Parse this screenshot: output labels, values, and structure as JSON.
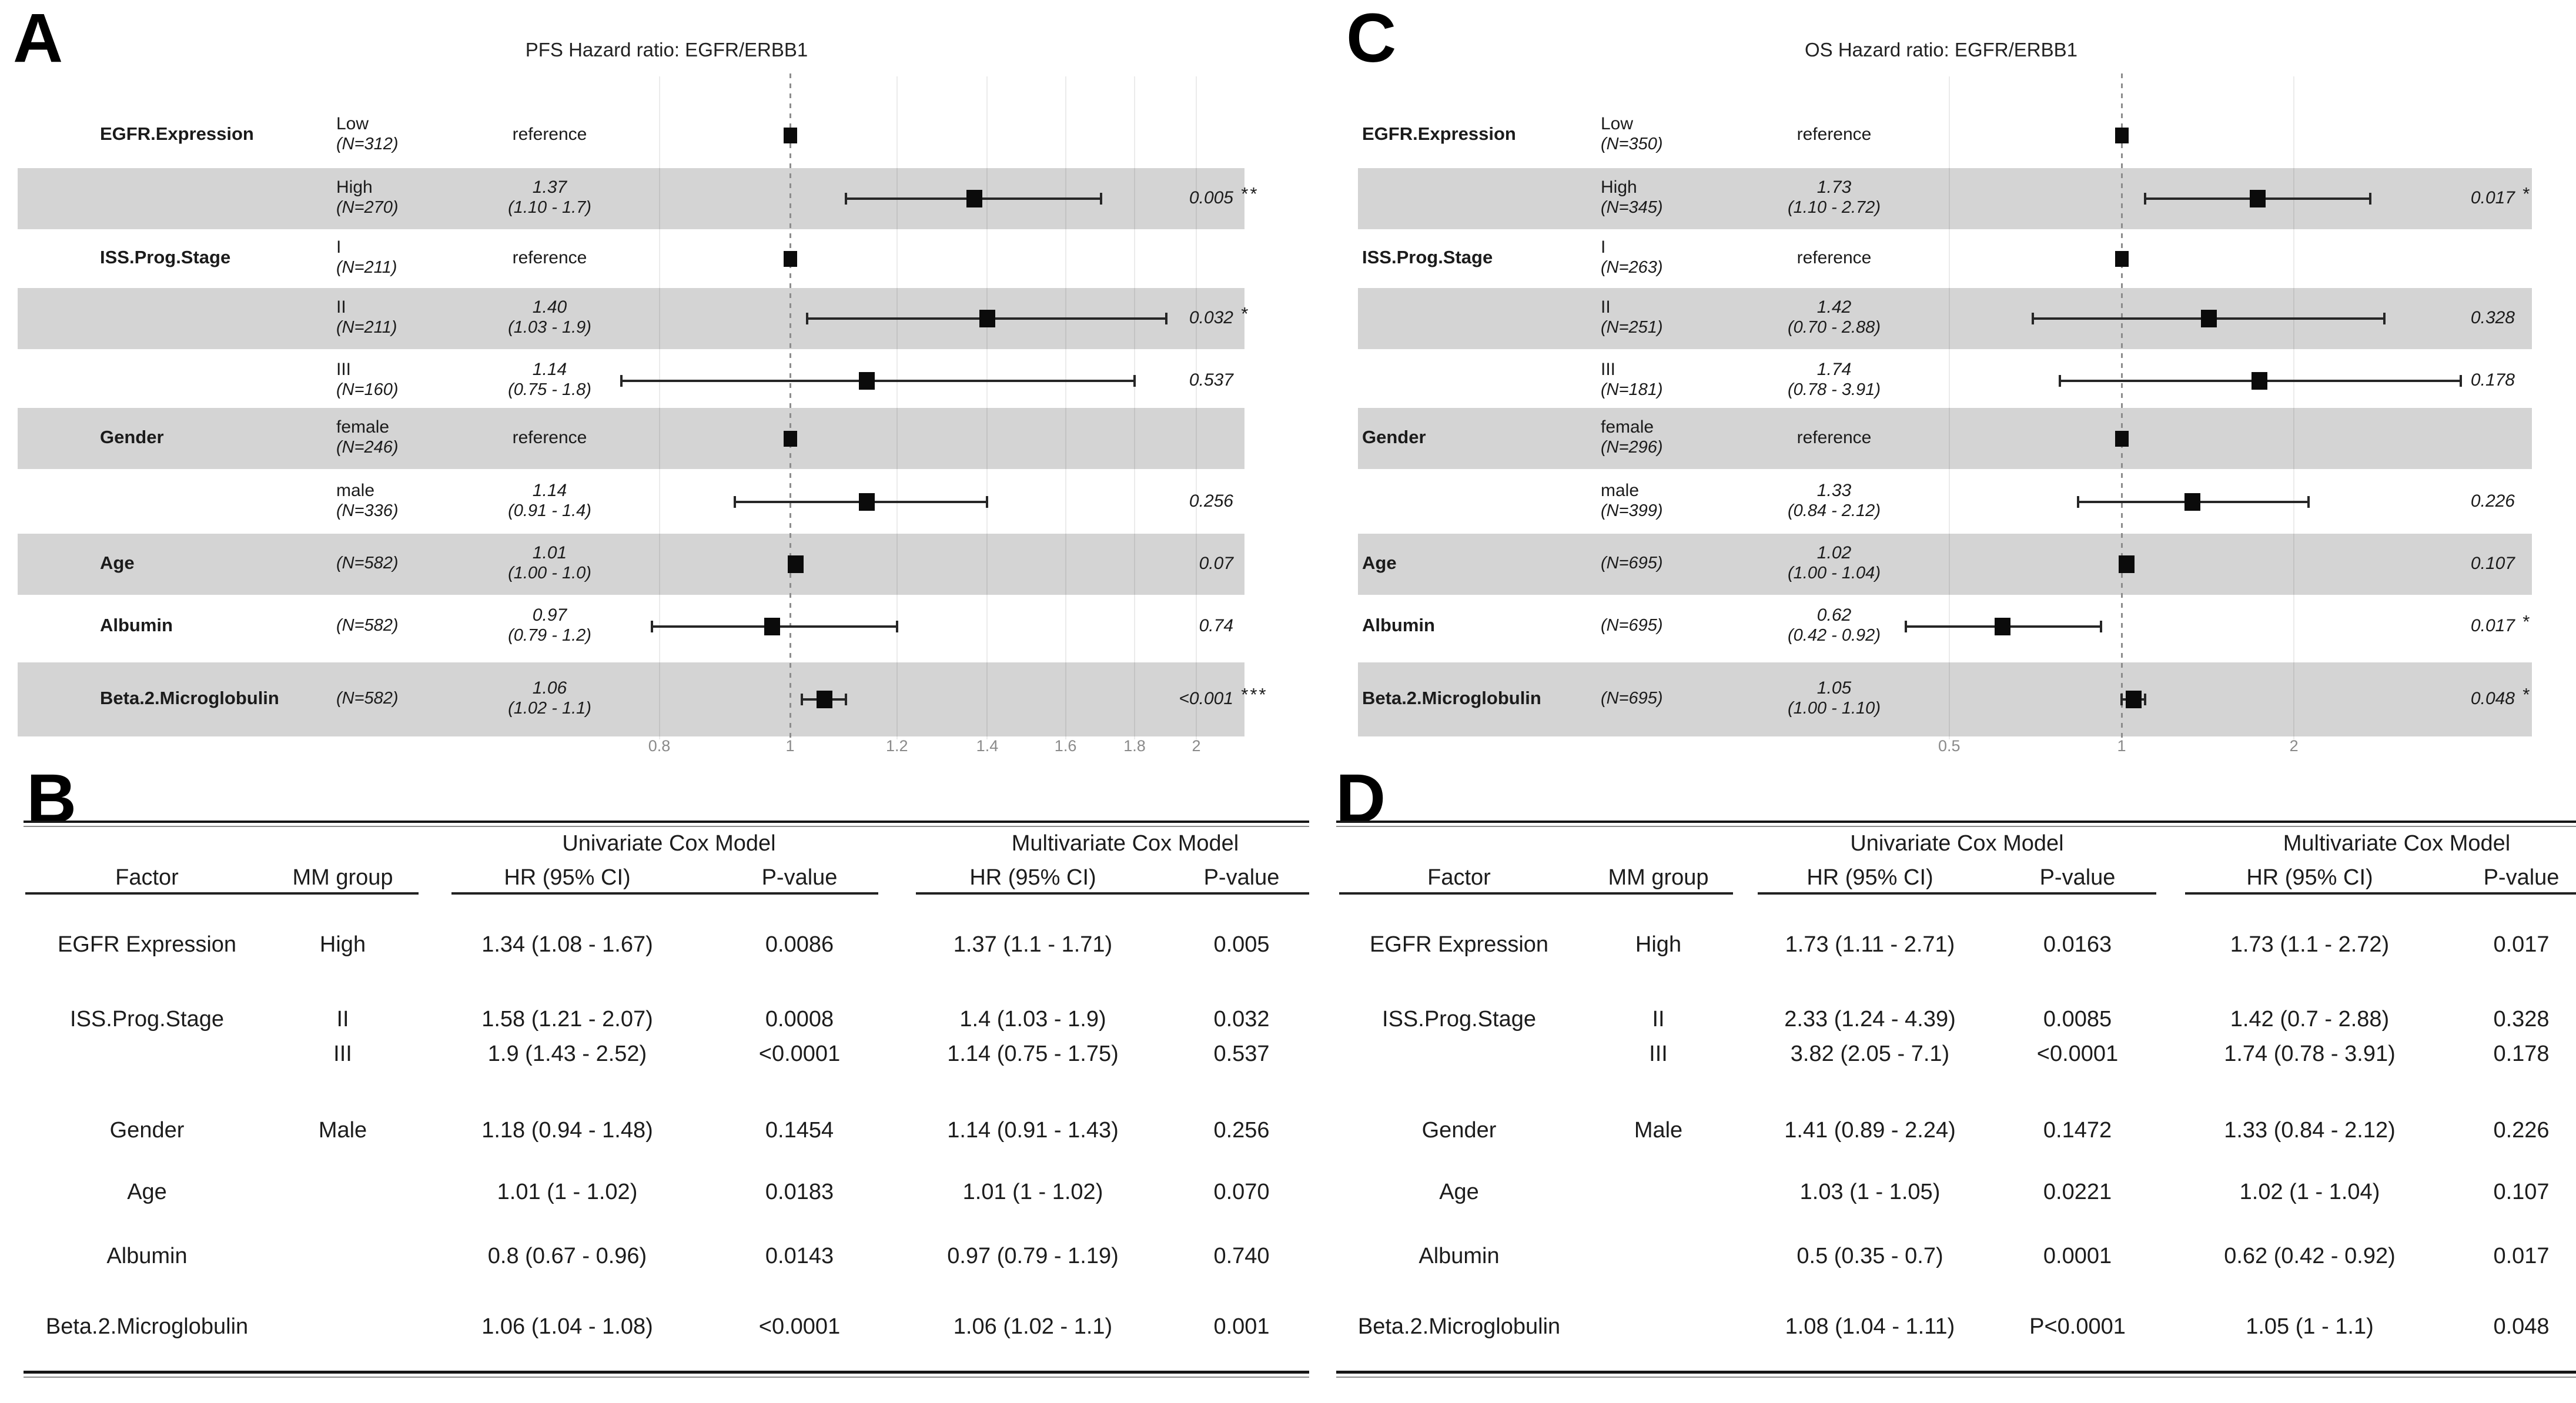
{
  "colors": {
    "stripe": "#d4d4d4",
    "marker": "#0b0b0b",
    "text": "#1b1b1b",
    "tick_label": "#8a8a8a",
    "reference_line": "#8c8c8c"
  },
  "chart_data": [
    {
      "type": "forest",
      "panel_letter": "A",
      "title": "PFS Hazard ratio: EGFR/ERBB1",
      "xscale": "log",
      "xticks": [
        "0.8",
        "1",
        "1.2",
        "1.4",
        "1.6",
        "1.8",
        "2"
      ],
      "xtick_values": [
        0.8,
        1,
        1.2,
        1.4,
        1.6,
        1.8,
        2
      ],
      "reference_line": 1,
      "legend": "none",
      "grid": "vertical-light",
      "rows": [
        {
          "factor": "EGFR.Expression",
          "level": "Low",
          "n": "(N=312)",
          "hr_label": "reference",
          "ci_label": "",
          "est": 1,
          "lo": 1,
          "hi": 1,
          "p": "",
          "stars": "",
          "ref": true,
          "shaded": false
        },
        {
          "factor": "",
          "level": "High",
          "n": "(N=270)",
          "hr_label": "1.37",
          "ci_label": "(1.10 - 1.7)",
          "est": 1.37,
          "lo": 1.1,
          "hi": 1.7,
          "p": "0.005",
          "stars": "**",
          "ref": false,
          "shaded": true
        },
        {
          "factor": "ISS.Prog.Stage",
          "level": "I",
          "n": "(N=211)",
          "hr_label": "reference",
          "ci_label": "",
          "est": 1,
          "lo": 1,
          "hi": 1,
          "p": "",
          "stars": "",
          "ref": true,
          "shaded": false
        },
        {
          "factor": "",
          "level": "II",
          "n": "(N=211)",
          "hr_label": "1.40",
          "ci_label": "(1.03 - 1.9)",
          "est": 1.4,
          "lo": 1.03,
          "hi": 1.9,
          "p": "0.032",
          "stars": "*",
          "ref": false,
          "shaded": true
        },
        {
          "factor": "",
          "level": "III",
          "n": "(N=160)",
          "hr_label": "1.14",
          "ci_label": "(0.75 - 1.8)",
          "est": 1.14,
          "lo": 0.75,
          "hi": 1.8,
          "p": "0.537",
          "stars": "",
          "ref": false,
          "shaded": false
        },
        {
          "factor": "Gender",
          "level": "female",
          "n": "(N=246)",
          "hr_label": "reference",
          "ci_label": "",
          "est": 1,
          "lo": 1,
          "hi": 1,
          "p": "",
          "stars": "",
          "ref": true,
          "shaded": true
        },
        {
          "factor": "",
          "level": "male",
          "n": "(N=336)",
          "hr_label": "1.14",
          "ci_label": "(0.91 - 1.4)",
          "est": 1.14,
          "lo": 0.91,
          "hi": 1.4,
          "p": "0.256",
          "stars": "",
          "ref": false,
          "shaded": false
        },
        {
          "factor": "Age",
          "level": "",
          "n": "(N=582)",
          "hr_label": "1.01",
          "ci_label": "(1.00 - 1.0)",
          "est": 1.01,
          "lo": 1.0,
          "hi": 1.02,
          "p": "0.07",
          "stars": "",
          "ref": false,
          "shaded": true
        },
        {
          "factor": "Albumin",
          "level": "",
          "n": "(N=582)",
          "hr_label": "0.97",
          "ci_label": "(0.79 - 1.2)",
          "est": 0.97,
          "lo": 0.79,
          "hi": 1.2,
          "p": "0.74",
          "stars": "",
          "ref": false,
          "shaded": false
        },
        {
          "factor": "Beta.2.Microglobulin",
          "level": "",
          "n": "(N=582)",
          "hr_label": "1.06",
          "ci_label": "(1.02 - 1.1)",
          "est": 1.06,
          "lo": 1.02,
          "hi": 1.1,
          "p": "<0.001",
          "stars": "***",
          "ref": false,
          "shaded": true
        }
      ]
    },
    {
      "type": "forest",
      "panel_letter": "C",
      "title": "OS Hazard ratio: EGFR/ERBB1",
      "xscale": "log",
      "xticks": [
        "0.5",
        "1",
        "2"
      ],
      "xtick_values": [
        0.5,
        1,
        2
      ],
      "reference_line": 1,
      "legend": "none",
      "grid": "vertical-light",
      "rows": [
        {
          "factor": "EGFR.Expression",
          "level": "Low",
          "n": "(N=350)",
          "hr_label": "reference",
          "ci_label": "",
          "est": 1,
          "lo": 1,
          "hi": 1,
          "p": "",
          "stars": "",
          "ref": true,
          "shaded": false
        },
        {
          "factor": "",
          "level": "High",
          "n": "(N=345)",
          "hr_label": "1.73",
          "ci_label": "(1.10 - 2.72)",
          "est": 1.73,
          "lo": 1.1,
          "hi": 2.72,
          "p": "0.017",
          "stars": "*",
          "ref": false,
          "shaded": true
        },
        {
          "factor": "ISS.Prog.Stage",
          "level": "I",
          "n": "(N=263)",
          "hr_label": "reference",
          "ci_label": "",
          "est": 1,
          "lo": 1,
          "hi": 1,
          "p": "",
          "stars": "",
          "ref": true,
          "shaded": false
        },
        {
          "factor": "",
          "level": "II",
          "n": "(N=251)",
          "hr_label": "1.42",
          "ci_label": "(0.70 - 2.88)",
          "est": 1.42,
          "lo": 0.7,
          "hi": 2.88,
          "p": "0.328",
          "stars": "",
          "ref": false,
          "shaded": true
        },
        {
          "factor": "",
          "level": "III",
          "n": "(N=181)",
          "hr_label": "1.74",
          "ci_label": "(0.78 - 3.91)",
          "est": 1.74,
          "lo": 0.78,
          "hi": 3.91,
          "p": "0.178",
          "stars": "",
          "ref": false,
          "shaded": false
        },
        {
          "factor": "Gender",
          "level": "female",
          "n": "(N=296)",
          "hr_label": "reference",
          "ci_label": "",
          "est": 1,
          "lo": 1,
          "hi": 1,
          "p": "",
          "stars": "",
          "ref": true,
          "shaded": true
        },
        {
          "factor": "",
          "level": "male",
          "n": "(N=399)",
          "hr_label": "1.33",
          "ci_label": "(0.84 - 2.12)",
          "est": 1.33,
          "lo": 0.84,
          "hi": 2.12,
          "p": "0.226",
          "stars": "",
          "ref": false,
          "shaded": false
        },
        {
          "factor": "Age",
          "level": "",
          "n": "(N=695)",
          "hr_label": "1.02",
          "ci_label": "(1.00 - 1.04)",
          "est": 1.02,
          "lo": 1.0,
          "hi": 1.04,
          "p": "0.107",
          "stars": "",
          "ref": false,
          "shaded": true
        },
        {
          "factor": "Albumin",
          "level": "",
          "n": "(N=695)",
          "hr_label": "0.62",
          "ci_label": "(0.42 - 0.92)",
          "est": 0.62,
          "lo": 0.42,
          "hi": 0.92,
          "p": "0.017",
          "stars": "*",
          "ref": false,
          "shaded": false
        },
        {
          "factor": "Beta.2.Microglobulin",
          "level": "",
          "n": "(N=695)",
          "hr_label": "1.05",
          "ci_label": "(1.00 - 1.10)",
          "est": 1.05,
          "lo": 1.0,
          "hi": 1.1,
          "p": "0.048",
          "stars": "*",
          "ref": false,
          "shaded": true
        }
      ]
    },
    {
      "type": "table",
      "panel_letter": "B",
      "group_headers": [
        "Univariate Cox Model",
        "Multivariate Cox Model"
      ],
      "columns": [
        "Factor",
        "MM group",
        "HR (95% CI)",
        "P-value",
        "HR (95% CI)",
        "P-value"
      ],
      "rows": [
        {
          "factor": "EGFR Expression",
          "group": "High",
          "u_hr": "1.34 (1.08 - 1.67)",
          "u_p": "0.0086",
          "m_hr": "1.37 (1.1 - 1.71)",
          "m_p": "0.005"
        },
        {
          "factor": "ISS.Prog.Stage",
          "group": "II",
          "u_hr": "1.58 (1.21 - 2.07)",
          "u_p": "0.0008",
          "m_hr": "1.4 (1.03 - 1.9)",
          "m_p": "0.032"
        },
        {
          "factor": "",
          "group": "III",
          "u_hr": "1.9 (1.43 - 2.52)",
          "u_p": "<0.0001",
          "m_hr": "1.14 (0.75 - 1.75)",
          "m_p": "0.537"
        },
        {
          "factor": "Gender",
          "group": "Male",
          "u_hr": "1.18 (0.94 - 1.48)",
          "u_p": "0.1454",
          "m_hr": "1.14 (0.91 - 1.43)",
          "m_p": "0.256"
        },
        {
          "factor": "Age",
          "group": "",
          "u_hr": "1.01 (1 - 1.02)",
          "u_p": "0.0183",
          "m_hr": "1.01 (1 - 1.02)",
          "m_p": "0.070"
        },
        {
          "factor": "Albumin",
          "group": "",
          "u_hr": "0.8 (0.67 - 0.96)",
          "u_p": "0.0143",
          "m_hr": "0.97 (0.79 - 1.19)",
          "m_p": "0.740"
        },
        {
          "factor": "Beta.2.Microglobulin",
          "group": "",
          "u_hr": "1.06 (1.04 - 1.08)",
          "u_p": "<0.0001",
          "m_hr": "1.06 (1.02 - 1.1)",
          "m_p": "0.001"
        }
      ]
    },
    {
      "type": "table",
      "panel_letter": "D",
      "group_headers": [
        "Univariate Cox Model",
        "Multivariate Cox Model"
      ],
      "columns": [
        "Factor",
        "MM group",
        "HR (95% CI)",
        "P-value",
        "HR (95% CI)",
        "P-value"
      ],
      "rows": [
        {
          "factor": "EGFR Expression",
          "group": "High",
          "u_hr": "1.73 (1.11 - 2.71)",
          "u_p": "0.0163",
          "m_hr": "1.73 (1.1 - 2.72)",
          "m_p": "0.017"
        },
        {
          "factor": "ISS.Prog.Stage",
          "group": "II",
          "u_hr": "2.33 (1.24 - 4.39)",
          "u_p": "0.0085",
          "m_hr": "1.42 (0.7 - 2.88)",
          "m_p": "0.328"
        },
        {
          "factor": "",
          "group": "III",
          "u_hr": "3.82 (2.05 - 7.1)",
          "u_p": "<0.0001",
          "m_hr": "1.74 (0.78 - 3.91)",
          "m_p": "0.178"
        },
        {
          "factor": "Gender",
          "group": "Male",
          "u_hr": "1.41 (0.89 - 2.24)",
          "u_p": "0.1472",
          "m_hr": "1.33 (0.84 - 2.12)",
          "m_p": "0.226"
        },
        {
          "factor": "Age",
          "group": "",
          "u_hr": "1.03 (1 - 1.05)",
          "u_p": "0.0221",
          "m_hr": "1.02 (1 - 1.04)",
          "m_p": "0.107"
        },
        {
          "factor": "Albumin",
          "group": "",
          "u_hr": "0.5 (0.35 - 0.7)",
          "u_p": "0.0001",
          "m_hr": "0.62 (0.42 - 0.92)",
          "m_p": "0.017"
        },
        {
          "factor": "Beta.2.Microglobulin",
          "group": "",
          "u_hr": "1.08 (1.04 - 1.11)",
          "u_p": "P<0.0001",
          "m_hr": "1.05 (1 - 1.1)",
          "m_p": "0.048"
        }
      ]
    }
  ]
}
